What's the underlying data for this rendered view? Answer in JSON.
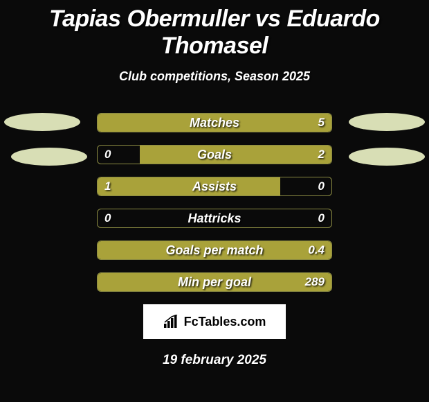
{
  "title": "Tapias Obermuller vs Eduardo Thomasel",
  "subtitle": "Club competitions, Season 2025",
  "date": "19 february 2025",
  "logo_text": "FcTables.com",
  "colors": {
    "background": "#0a0a0a",
    "bar_fill": "#a9a23a",
    "bar_border": "#8a8a42",
    "ellipse": "#d8deb5",
    "text": "#ffffff"
  },
  "stats": [
    {
      "label": "Matches",
      "left_text": "",
      "right_text": "5",
      "left_pct": 0,
      "right_pct": 100,
      "fill_mode": "full"
    },
    {
      "label": "Goals",
      "left_text": "0",
      "right_text": "2",
      "left_pct": 0,
      "right_pct": 82,
      "fill_mode": "right"
    },
    {
      "label": "Assists",
      "left_text": "1",
      "right_text": "0",
      "left_pct": 78,
      "right_pct": 0,
      "fill_mode": "left"
    },
    {
      "label": "Hattricks",
      "left_text": "0",
      "right_text": "0",
      "left_pct": 0,
      "right_pct": 0,
      "fill_mode": "none"
    },
    {
      "label": "Goals per match",
      "left_text": "",
      "right_text": "0.4",
      "left_pct": 0,
      "right_pct": 100,
      "fill_mode": "full"
    },
    {
      "label": "Min per goal",
      "left_text": "",
      "right_text": "289",
      "left_pct": 0,
      "right_pct": 100,
      "fill_mode": "full"
    }
  ]
}
